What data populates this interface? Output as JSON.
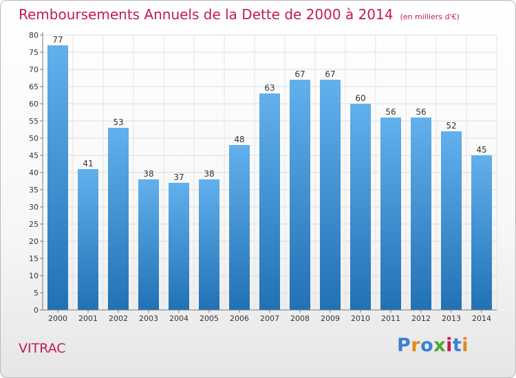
{
  "title": "Remboursements Annuels de la Dette de 2000 à 2014",
  "subtitle": "(en milliers d'€)",
  "city": "VITRAC",
  "logo": {
    "text": "Proxiti",
    "colors": [
      "#3b7fd9",
      "#e08a1e",
      "#3b7fd9",
      "#4aa834",
      "#c2185b",
      "#3b7fd9",
      "#e08a1e"
    ]
  },
  "colors": {
    "title": "#c2185b",
    "bar_top": "#62b0ec",
    "bar_bottom": "#2171b5"
  },
  "chart_data": {
    "type": "bar",
    "categories": [
      "2000",
      "2001",
      "2002",
      "2003",
      "2004",
      "2005",
      "2006",
      "2007",
      "2008",
      "2009",
      "2010",
      "2011",
      "2012",
      "2013",
      "2014"
    ],
    "values": [
      77,
      41,
      53,
      38,
      37,
      38,
      48,
      63,
      67,
      67,
      60,
      56,
      56,
      52,
      45
    ],
    "ylim": [
      0,
      80
    ],
    "yticks": [
      0,
      5,
      10,
      15,
      20,
      25,
      30,
      35,
      40,
      45,
      50,
      55,
      60,
      65,
      70,
      75,
      80
    ],
    "grid": true,
    "data_labels": true,
    "legend": "none"
  }
}
